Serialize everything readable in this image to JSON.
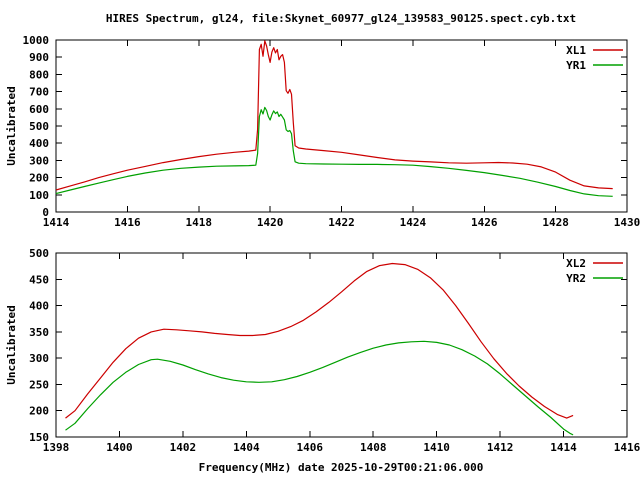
{
  "title": "HIRES Spectrum, gl24, file:Skynet_60977_gl24_139583_90125.spect.cyb.txt",
  "xlabel": "Frequency(MHz) date 2025-10-29T00:21:06.000",
  "colors": {
    "axis": "#000000",
    "red_series": "#cc0000",
    "green_series": "#00a000",
    "background": "#ffffff"
  },
  "chart_data": [
    {
      "type": "line",
      "title": "",
      "ylabel": "Uncalibrated",
      "xlabel": "",
      "xlim": [
        1414,
        1430
      ],
      "ylim": [
        0,
        1000
      ],
      "xticks": [
        1414,
        1416,
        1418,
        1420,
        1422,
        1424,
        1426,
        1428,
        1430
      ],
      "yticks": [
        0,
        100,
        200,
        300,
        400,
        500,
        600,
        700,
        800,
        900,
        1000
      ],
      "grid": false,
      "legend_position": "top-right",
      "series": [
        {
          "name": "XL1",
          "color": "#cc0000",
          "points": [
            [
              1414.0,
              128
            ],
            [
              1414.4,
              152
            ],
            [
              1414.8,
              175
            ],
            [
              1415.2,
              200
            ],
            [
              1415.6,
              222
            ],
            [
              1416.0,
              243
            ],
            [
              1416.5,
              265
            ],
            [
              1417.0,
              287
            ],
            [
              1417.5,
              305
            ],
            [
              1418.0,
              322
            ],
            [
              1418.5,
              336
            ],
            [
              1419.0,
              347
            ],
            [
              1419.4,
              354
            ],
            [
              1419.6,
              360
            ],
            [
              1419.65,
              480
            ],
            [
              1419.7,
              945
            ],
            [
              1419.75,
              975
            ],
            [
              1419.8,
              905
            ],
            [
              1419.85,
              995
            ],
            [
              1419.9,
              965
            ],
            [
              1419.95,
              915
            ],
            [
              1420.0,
              870
            ],
            [
              1420.05,
              930
            ],
            [
              1420.1,
              955
            ],
            [
              1420.15,
              925
            ],
            [
              1420.2,
              945
            ],
            [
              1420.25,
              885
            ],
            [
              1420.3,
              905
            ],
            [
              1420.35,
              915
            ],
            [
              1420.4,
              870
            ],
            [
              1420.45,
              705
            ],
            [
              1420.5,
              690
            ],
            [
              1420.55,
              712
            ],
            [
              1420.6,
              685
            ],
            [
              1420.65,
              520
            ],
            [
              1420.7,
              385
            ],
            [
              1420.8,
              372
            ],
            [
              1421.0,
              366
            ],
            [
              1421.5,
              357
            ],
            [
              1422.0,
              347
            ],
            [
              1422.5,
              332
            ],
            [
              1423.0,
              317
            ],
            [
              1423.5,
              303
            ],
            [
              1424.0,
              296
            ],
            [
              1424.5,
              291
            ],
            [
              1425.0,
              286
            ],
            [
              1425.5,
              284
            ],
            [
              1426.0,
              286
            ],
            [
              1426.4,
              288
            ],
            [
              1426.8,
              285
            ],
            [
              1427.2,
              278
            ],
            [
              1427.6,
              262
            ],
            [
              1428.0,
              232
            ],
            [
              1428.4,
              185
            ],
            [
              1428.8,
              152
            ],
            [
              1429.2,
              140
            ],
            [
              1429.6,
              136
            ]
          ]
        },
        {
          "name": "YR1",
          "color": "#00a000",
          "points": [
            [
              1414.0,
              107
            ],
            [
              1414.4,
              128
            ],
            [
              1414.8,
              148
            ],
            [
              1415.2,
              168
            ],
            [
              1415.6,
              188
            ],
            [
              1416.0,
              207
            ],
            [
              1416.5,
              227
            ],
            [
              1417.0,
              243
            ],
            [
              1417.5,
              254
            ],
            [
              1418.0,
              261
            ],
            [
              1418.5,
              266
            ],
            [
              1419.0,
              268
            ],
            [
              1419.4,
              270
            ],
            [
              1419.6,
              272
            ],
            [
              1419.65,
              340
            ],
            [
              1419.7,
              555
            ],
            [
              1419.75,
              595
            ],
            [
              1419.8,
              570
            ],
            [
              1419.85,
              608
            ],
            [
              1419.9,
              590
            ],
            [
              1419.95,
              555
            ],
            [
              1420.0,
              535
            ],
            [
              1420.05,
              565
            ],
            [
              1420.1,
              588
            ],
            [
              1420.15,
              572
            ],
            [
              1420.2,
              582
            ],
            [
              1420.25,
              555
            ],
            [
              1420.3,
              568
            ],
            [
              1420.35,
              552
            ],
            [
              1420.4,
              535
            ],
            [
              1420.45,
              478
            ],
            [
              1420.5,
              468
            ],
            [
              1420.55,
              474
            ],
            [
              1420.6,
              455
            ],
            [
              1420.65,
              355
            ],
            [
              1420.7,
              292
            ],
            [
              1420.8,
              284
            ],
            [
              1421.0,
              281
            ],
            [
              1421.5,
              279
            ],
            [
              1422.0,
              278
            ],
            [
              1422.5,
              277
            ],
            [
              1423.0,
              277
            ],
            [
              1423.5,
              275
            ],
            [
              1424.0,
              272
            ],
            [
              1424.5,
              264
            ],
            [
              1425.0,
              254
            ],
            [
              1425.5,
              242
            ],
            [
              1426.0,
              229
            ],
            [
              1426.5,
              213
            ],
            [
              1427.0,
              196
            ],
            [
              1427.5,
              173
            ],
            [
              1428.0,
              148
            ],
            [
              1428.4,
              125
            ],
            [
              1428.8,
              105
            ],
            [
              1429.2,
              95
            ],
            [
              1429.6,
              91
            ]
          ]
        }
      ]
    },
    {
      "type": "line",
      "title": "",
      "ylabel": "Uncalibrated",
      "xlabel": "Frequency(MHz) date 2025-10-29T00:21:06.000",
      "xlim": [
        1398,
        1416
      ],
      "ylim": [
        150,
        500
      ],
      "xticks": [
        1398,
        1400,
        1402,
        1404,
        1406,
        1408,
        1410,
        1412,
        1414,
        1416
      ],
      "yticks": [
        150,
        200,
        250,
        300,
        350,
        400,
        450,
        500
      ],
      "grid": false,
      "legend_position": "top-right",
      "series": [
        {
          "name": "XL2",
          "color": "#cc0000",
          "points": [
            [
              1398.3,
              186
            ],
            [
              1398.6,
              200
            ],
            [
              1399.0,
              232
            ],
            [
              1399.4,
              262
            ],
            [
              1399.8,
              292
            ],
            [
              1400.2,
              318
            ],
            [
              1400.6,
              338
            ],
            [
              1401.0,
              350
            ],
            [
              1401.4,
              355
            ],
            [
              1401.8,
              354
            ],
            [
              1402.2,
              352
            ],
            [
              1402.6,
              350
            ],
            [
              1403.0,
              347
            ],
            [
              1403.4,
              345
            ],
            [
              1403.8,
              343
            ],
            [
              1404.2,
              343
            ],
            [
              1404.6,
              345
            ],
            [
              1405.0,
              351
            ],
            [
              1405.4,
              360
            ],
            [
              1405.8,
              372
            ],
            [
              1406.2,
              388
            ],
            [
              1406.6,
              406
            ],
            [
              1407.0,
              426
            ],
            [
              1407.4,
              447
            ],
            [
              1407.8,
              465
            ],
            [
              1408.2,
              476
            ],
            [
              1408.6,
              480
            ],
            [
              1409.0,
              478
            ],
            [
              1409.4,
              469
            ],
            [
              1409.8,
              453
            ],
            [
              1410.2,
              430
            ],
            [
              1410.6,
              400
            ],
            [
              1411.0,
              366
            ],
            [
              1411.4,
              331
            ],
            [
              1411.8,
              299
            ],
            [
              1412.2,
              271
            ],
            [
              1412.6,
              247
            ],
            [
              1413.0,
              226
            ],
            [
              1413.4,
              208
            ],
            [
              1413.8,
              193
            ],
            [
              1414.1,
              186
            ],
            [
              1414.3,
              191
            ]
          ]
        },
        {
          "name": "YR2",
          "color": "#00a000",
          "points": [
            [
              1398.3,
              163
            ],
            [
              1398.6,
              176
            ],
            [
              1399.0,
              204
            ],
            [
              1399.4,
              230
            ],
            [
              1399.8,
              254
            ],
            [
              1400.2,
              273
            ],
            [
              1400.6,
              288
            ],
            [
              1401.0,
              297
            ],
            [
              1401.2,
              298
            ],
            [
              1401.6,
              294
            ],
            [
              1402.0,
              287
            ],
            [
              1402.4,
              278
            ],
            [
              1402.8,
              270
            ],
            [
              1403.2,
              263
            ],
            [
              1403.6,
              258
            ],
            [
              1404.0,
              255
            ],
            [
              1404.4,
              254
            ],
            [
              1404.8,
              255
            ],
            [
              1405.2,
              259
            ],
            [
              1405.6,
              265
            ],
            [
              1406.0,
              273
            ],
            [
              1406.4,
              282
            ],
            [
              1406.8,
              292
            ],
            [
              1407.2,
              302
            ],
            [
              1407.6,
              311
            ],
            [
              1408.0,
              319
            ],
            [
              1408.4,
              325
            ],
            [
              1408.8,
              329
            ],
            [
              1409.2,
              331
            ],
            [
              1409.6,
              332
            ],
            [
              1410.0,
              330
            ],
            [
              1410.4,
              325
            ],
            [
              1410.8,
              316
            ],
            [
              1411.2,
              304
            ],
            [
              1411.6,
              289
            ],
            [
              1412.0,
              270
            ],
            [
              1412.4,
              249
            ],
            [
              1412.8,
              228
            ],
            [
              1413.2,
              207
            ],
            [
              1413.6,
              187
            ],
            [
              1414.0,
              165
            ],
            [
              1414.2,
              157
            ],
            [
              1414.3,
              154
            ]
          ]
        }
      ]
    }
  ]
}
